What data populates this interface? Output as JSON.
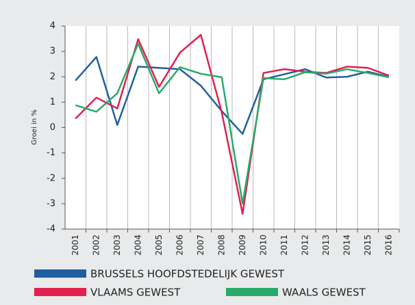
{
  "chart_data": {
    "type": "line",
    "y_label": "Groei in %",
    "categories": [
      "2001",
      "2002",
      "2003",
      "2004",
      "2005",
      "2006",
      "2007",
      "2008",
      "2009",
      "2010",
      "2011",
      "2012",
      "2013",
      "2014",
      "2015",
      "2016"
    ],
    "series": [
      {
        "name": "BRUSSELS HOOFDSTEDELIJK GEWEST",
        "color": "#1f5fa0",
        "values": [
          1.85,
          2.78,
          0.1,
          2.4,
          2.35,
          2.3,
          1.65,
          0.65,
          -0.25,
          1.9,
          2.1,
          2.3,
          1.97,
          2.0,
          2.2,
          2.0
        ]
      },
      {
        "name": "VLAAMS GEWEST",
        "color": "#e0204f",
        "values": [
          0.35,
          1.18,
          0.75,
          3.48,
          1.6,
          2.95,
          3.65,
          0.6,
          -3.4,
          2.15,
          2.3,
          2.2,
          2.15,
          2.4,
          2.35,
          2.05
        ]
      },
      {
        "name": "WAALS GEWEST",
        "color": "#2aaa6a",
        "values": [
          0.88,
          0.62,
          1.35,
          3.3,
          1.35,
          2.38,
          2.12,
          1.98,
          -3.0,
          1.95,
          1.9,
          2.18,
          2.12,
          2.3,
          2.15,
          1.98
        ]
      }
    ],
    "ylim": [
      -4,
      4
    ],
    "yticks": [
      -4,
      -3,
      -2,
      -1,
      0,
      1,
      2,
      3,
      4
    ],
    "grid": "vertical"
  }
}
